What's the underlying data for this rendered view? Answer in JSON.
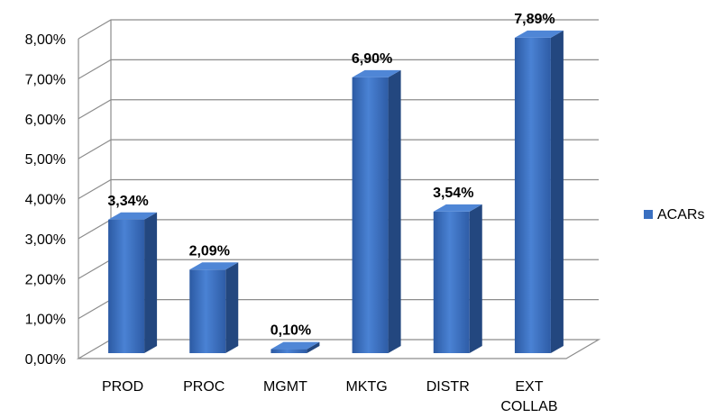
{
  "chart_data": {
    "type": "bar",
    "categories": [
      "PROD",
      "PROC",
      "MGMT",
      "MKTG",
      "DISTR",
      [
        "EXT",
        "COLLAB"
      ]
    ],
    "series": [
      {
        "name": "ACARs",
        "values": [
          3.34,
          2.09,
          0.1,
          6.9,
          3.54,
          7.89
        ],
        "data_labels": [
          "3,34%",
          "2,09%",
          "0,10%",
          "6,90%",
          "3,54%",
          "7,89%"
        ],
        "color": "#3a6fc0"
      }
    ],
    "ylim": [
      0,
      8
    ],
    "yticks": [
      "0,00%",
      "1,00%",
      "2,00%",
      "3,00%",
      "4,00%",
      "5,00%",
      "6,00%",
      "7,00%",
      "8,00%"
    ],
    "grid": true,
    "legend": "right",
    "style": "3d"
  }
}
